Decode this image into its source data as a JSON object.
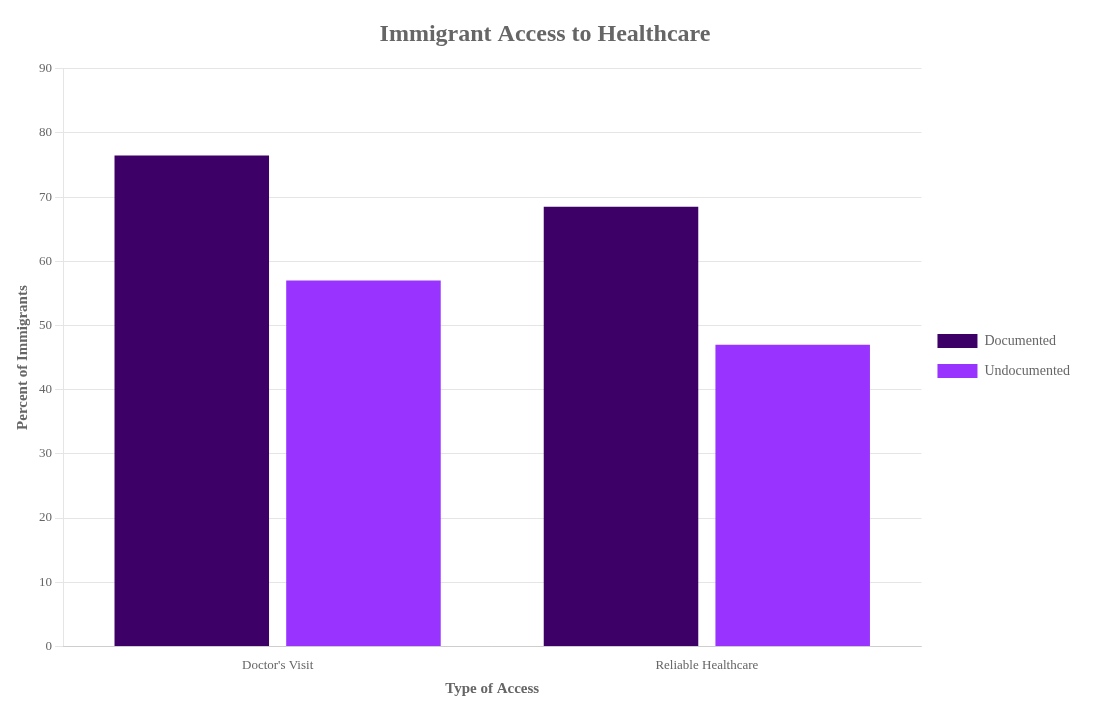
{
  "chart_data": {
    "type": "bar",
    "title": "Immigrant Access to Healthcare",
    "xlabel": "Type of Access",
    "ylabel": "Percent of Immigrants",
    "categories": [
      "Doctor's Visit",
      "Reliable Healthcare"
    ],
    "series": [
      {
        "name": "Documented",
        "color": "#3d0066",
        "values": [
          76.5,
          68.5
        ]
      },
      {
        "name": "Undocumented",
        "color": "#9933ff",
        "values": [
          57.0,
          47.0
        ]
      }
    ],
    "ylim": [
      0,
      90
    ],
    "yticks": [
      0,
      10,
      20,
      30,
      40,
      50,
      60,
      70,
      80,
      90
    ],
    "grid": true,
    "legend": "right"
  }
}
